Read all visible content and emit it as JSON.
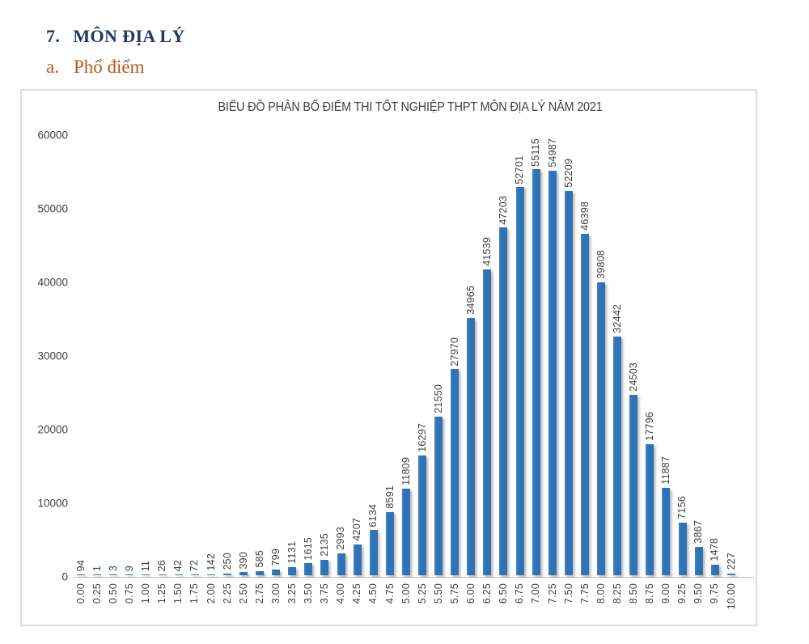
{
  "headings": {
    "section_number": "7.",
    "section_title": "MÔN ĐỊA LÝ",
    "subsection_letter": "a.",
    "subsection_title": "Phổ điểm"
  },
  "chart_data": {
    "type": "bar",
    "title": "BIỂU ĐỒ PHÂN BỐ ĐIỂM THI TỐT NGHIỆP THPT MÔN ĐỊA LÝ NĂM 2021",
    "categories": [
      "0.00",
      "0.25",
      "0.50",
      "0.75",
      "1.00",
      "1.25",
      "1.50",
      "1.75",
      "2.00",
      "2.25",
      "2.50",
      "2.75",
      "3.00",
      "3.25",
      "3.50",
      "3.75",
      "4.00",
      "4.25",
      "4.50",
      "4.75",
      "5.00",
      "5.25",
      "5.50",
      "5.75",
      "6.00",
      "6.25",
      "6.50",
      "6.75",
      "7.00",
      "7.25",
      "7.50",
      "7.75",
      "8.00",
      "8.25",
      "8.50",
      "8.75",
      "9.00",
      "9.25",
      "9.50",
      "9.75",
      "10.00"
    ],
    "values": [
      94,
      1,
      3,
      9,
      11,
      26,
      42,
      72,
      142,
      250,
      390,
      585,
      799,
      1131,
      1615,
      2135,
      2993,
      4207,
      6134,
      8591,
      11809,
      16297,
      21550,
      27970,
      34965,
      41539,
      47203,
      52701,
      55115,
      54987,
      52209,
      46398,
      39808,
      32442,
      24503,
      17796,
      11887,
      7156,
      3867,
      1478,
      227
    ],
    "xlabel": "",
    "ylabel": "",
    "ylim": [
      0,
      60000
    ],
    "y_ticks": [
      0,
      10000,
      20000,
      30000,
      40000,
      50000,
      60000
    ],
    "grid": false,
    "legend": false,
    "data_labels": "rotated-90-above-bars",
    "x_labels_rotation": "rotated-90",
    "bar_color": "#2e74b5",
    "label_color": "#404040",
    "title_color": "#3f3f3f"
  },
  "colors": {
    "section_heading": "#1f3864",
    "subsection_heading": "#c0531c",
    "chart_border": "#dcdcdc",
    "axis_line": "#bcbcbc"
  }
}
